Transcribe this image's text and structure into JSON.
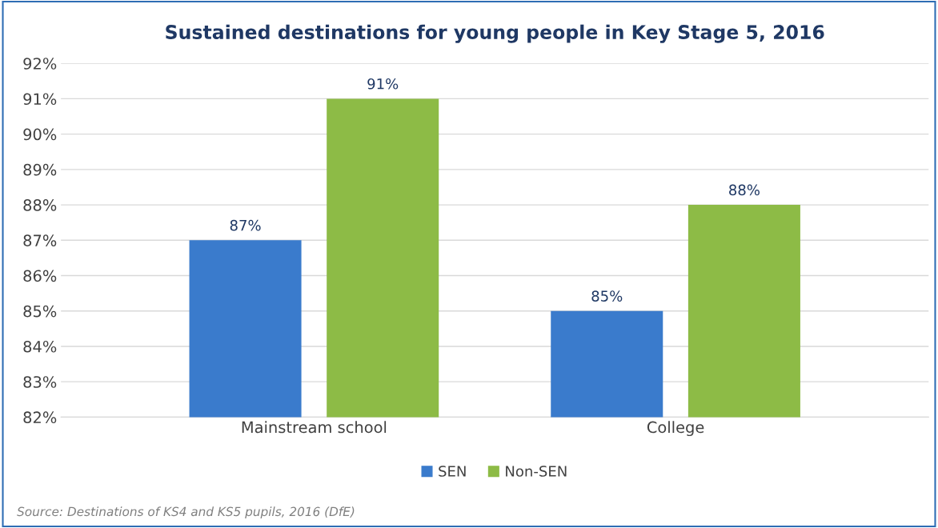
{
  "chart_data": {
    "type": "bar",
    "title": "Sustained destinations for young people in Key Stage 5, 2016",
    "categories": [
      "Mainstream school",
      "College"
    ],
    "series": [
      {
        "name": "SEN",
        "color": "#3a7bcc",
        "values": [
          87,
          85
        ],
        "value_labels": [
          "87%",
          "85%"
        ]
      },
      {
        "name": "Non-SEN",
        "color": "#8dbb46",
        "values": [
          91,
          88
        ],
        "value_labels": [
          "91%",
          "88%"
        ]
      }
    ],
    "ylim": [
      82,
      92
    ],
    "yticks": [
      {
        "value": 82,
        "label": "82%"
      },
      {
        "value": 83,
        "label": "83%"
      },
      {
        "value": 84,
        "label": "84%"
      },
      {
        "value": 85,
        "label": "85%"
      },
      {
        "value": 86,
        "label": "86%"
      },
      {
        "value": 87,
        "label": "87%"
      },
      {
        "value": 88,
        "label": "88%"
      },
      {
        "value": 89,
        "label": "89%"
      },
      {
        "value": 90,
        "label": "90%"
      },
      {
        "value": 91,
        "label": "91%"
      },
      {
        "value": 92,
        "label": "92%"
      }
    ],
    "grid": "y",
    "legend": "bottom",
    "annotations": [
      "Source: Destinations of KS4 and KS5 pupils, 2016 (DfE)"
    ]
  }
}
